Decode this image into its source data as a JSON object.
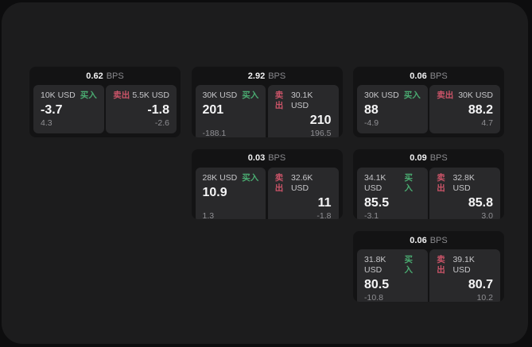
{
  "labels": {
    "bps_unit": "BPS",
    "buy": "买入",
    "sell": "卖出"
  },
  "colors": {
    "buy_green": "#4aab71",
    "sell_red": "#ca5468",
    "panel_bg": "#1c1c1d",
    "card_bg": "#131314",
    "cell_bg": "#29292b"
  },
  "cards": [
    {
      "bps": "0.62",
      "buy": {
        "amount": "10K USD",
        "value": "-3.7",
        "sub": "4.3"
      },
      "sell": {
        "amount": "5.5K USD",
        "value": "-1.8",
        "sub": "-2.6"
      }
    },
    {
      "bps": "2.92",
      "buy": {
        "amount": "30K USD",
        "value": "201",
        "sub": "-188.1"
      },
      "sell": {
        "amount": "30.1K USD",
        "value": "210",
        "sub": "196.5"
      }
    },
    {
      "bps": "0.06",
      "buy": {
        "amount": "30K USD",
        "value": "88",
        "sub": "-4.9"
      },
      "sell": {
        "amount": "30K USD",
        "value": "88.2",
        "sub": "4.7"
      }
    },
    {
      "bps": "0.03",
      "buy": {
        "amount": "28K USD",
        "value": "10.9",
        "sub": "1.3"
      },
      "sell": {
        "amount": "32.6K USD",
        "value": "11",
        "sub": "-1.8"
      }
    },
    {
      "bps": "0.09",
      "buy": {
        "amount": "34.1K USD",
        "value": "85.5",
        "sub": "-3.1"
      },
      "sell": {
        "amount": "32.8K USD",
        "value": "85.8",
        "sub": "3.0"
      }
    },
    {
      "bps": "0.06",
      "buy": {
        "amount": "31.8K USD",
        "value": "80.5",
        "sub": "-10.8"
      },
      "sell": {
        "amount": "39.1K USD",
        "value": "80.7",
        "sub": "10.2"
      }
    }
  ]
}
